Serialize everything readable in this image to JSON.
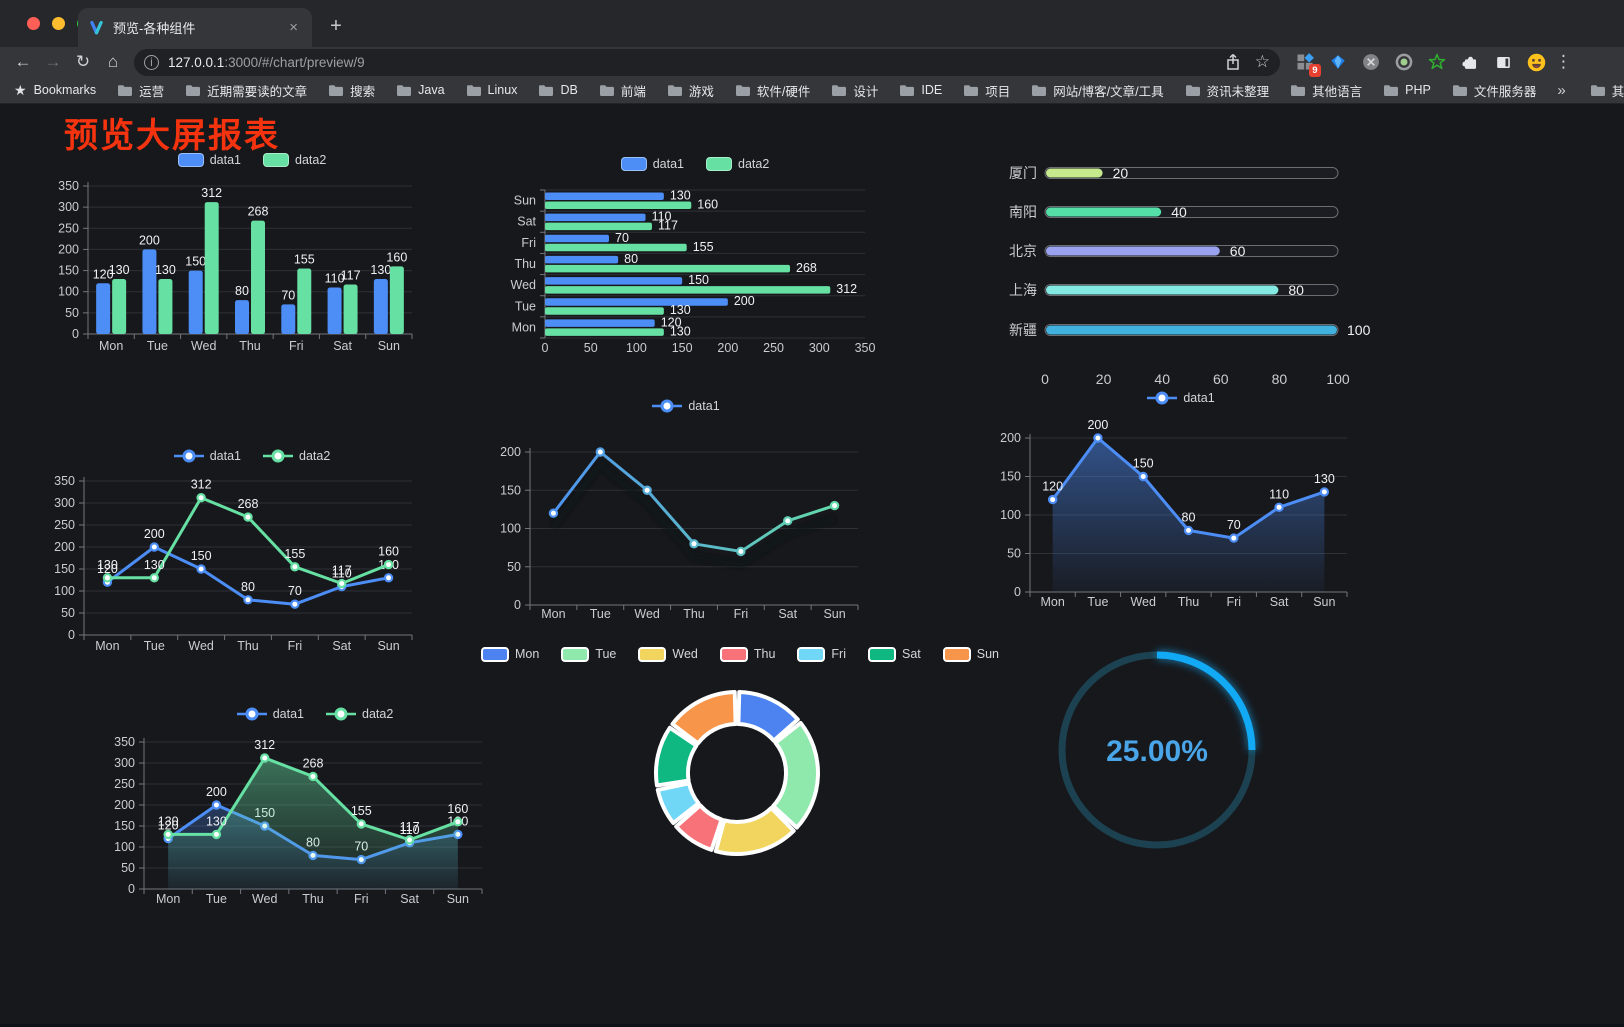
{
  "browser": {
    "tab_title": "预览-各种组件",
    "close_tab": "×",
    "new_tab_button": "+",
    "back_arrow": "←",
    "forward_arrow": "→",
    "reload_glyph": "↻",
    "home_glyph": "⌂",
    "url_host": "127.0.0.1",
    "url_path": ":3000/#/chart/preview/9",
    "star_glyph": "☆",
    "extension_badge": "9",
    "menu_dots": "⋮",
    "bookmarks_label": "Bookmarks",
    "bookmarks": [
      "运营",
      "近期需要读的文章",
      "搜索",
      "Java",
      "Linux",
      "DB",
      "前端",
      "游戏",
      "软件/硬件",
      "设计",
      "IDE",
      "项目",
      "网站/博客/文章/工具",
      "资讯未整理",
      "其他语言",
      "PHP",
      "文件服务器"
    ],
    "overflow_chevron": "»",
    "other_bookmarks": "其他书签"
  },
  "page": {
    "title": "预览大屏报表",
    "title_color": "#f5340f",
    "background": "#17181c"
  },
  "colors": {
    "data1": "#4C8DF6",
    "data2": "#66E0A3",
    "axis_text": "#c9ccd1",
    "axis_line": "#72767b",
    "grid_line": "#2e3136",
    "value_label": "#f0f1f3"
  },
  "chart_data": [
    {
      "id": "bar-vertical",
      "type": "bar",
      "categories": [
        "Mon",
        "Tue",
        "Wed",
        "Thu",
        "Fri",
        "Sat",
        "Sun"
      ],
      "series": [
        {
          "name": "data1",
          "color": "#4C8DF6",
          "values": [
            120,
            200,
            150,
            80,
            70,
            110,
            130
          ]
        },
        {
          "name": "data2",
          "color": "#66E0A3",
          "values": [
            130,
            130,
            312,
            268,
            155,
            117,
            160
          ]
        }
      ],
      "ylim": [
        0,
        350
      ],
      "ytick": 50,
      "value_labels": true,
      "legend": {
        "style": "rect",
        "entries": [
          {
            "label": "data1",
            "color": "#4C8DF6"
          },
          {
            "label": "data2",
            "color": "#66E0A3"
          }
        ]
      }
    },
    {
      "id": "bar-horizontal",
      "type": "hbar",
      "categories": [
        "Mon",
        "Tue",
        "Wed",
        "Thu",
        "Fri",
        "Sat",
        "Sun"
      ],
      "display_top_to_bottom": [
        "Sun",
        "Sat",
        "Fri",
        "Thu",
        "Wed",
        "Tue",
        "Mon"
      ],
      "series": [
        {
          "name": "data1",
          "color": "#4C8DF6",
          "values": [
            120,
            200,
            150,
            80,
            70,
            110,
            130
          ]
        },
        {
          "name": "data2",
          "color": "#66E0A3",
          "values": [
            130,
            130,
            312,
            268,
            155,
            117,
            160
          ]
        }
      ],
      "xlim": [
        0,
        350
      ],
      "xtick": 50,
      "value_labels": true,
      "legend": {
        "style": "rect",
        "entries": [
          {
            "label": "data1",
            "color": "#4C8DF6"
          },
          {
            "label": "data2",
            "color": "#66E0A3"
          }
        ]
      }
    },
    {
      "id": "progress",
      "type": "progress",
      "items": [
        {
          "label": "厦门",
          "value": 20,
          "color": "#c6e98e"
        },
        {
          "label": "南阳",
          "value": 40,
          "color": "#54dfa6"
        },
        {
          "label": "北京",
          "value": 60,
          "color": "#9aa2ef"
        },
        {
          "label": "上海",
          "value": 80,
          "color": "#84e9e3"
        },
        {
          "label": "新疆",
          "value": 100,
          "color": "#41b1de"
        }
      ],
      "xlim": [
        0,
        100
      ],
      "xticks": [
        0,
        20,
        40,
        60,
        80,
        100
      ]
    },
    {
      "id": "line-basic",
      "type": "line",
      "categories": [
        "Mon",
        "Tue",
        "Wed",
        "Thu",
        "Fri",
        "Sat",
        "Sun"
      ],
      "series": [
        {
          "name": "data1",
          "color": "#4C8DF6",
          "values": [
            120,
            200,
            150,
            80,
            70,
            110,
            130
          ],
          "labels": true
        },
        {
          "name": "data2",
          "color": "#66E0A3",
          "values": [
            130,
            130,
            312,
            268,
            155,
            117,
            160
          ],
          "labels": true
        }
      ],
      "ylim": [
        0,
        350
      ],
      "ytick": 50,
      "legend": {
        "style": "line",
        "entries": [
          {
            "label": "data1",
            "color": "#4C8DF6"
          },
          {
            "label": "data2",
            "color": "#66E0A3"
          }
        ]
      }
    },
    {
      "id": "line-gradient",
      "type": "line",
      "categories": [
        "Mon",
        "Tue",
        "Wed",
        "Thu",
        "Fri",
        "Sat",
        "Sun"
      ],
      "series": [
        {
          "name": "data1",
          "gradient": [
            "#4C8DF6",
            "#66E0A3"
          ],
          "color": "#4C8DF6",
          "values": [
            120,
            200,
            150,
            80,
            70,
            110,
            130
          ],
          "labels": false
        }
      ],
      "ylim": [
        0,
        200
      ],
      "ytick": 50,
      "shadow": true,
      "legend": {
        "style": "line",
        "entries": [
          {
            "label": "data1",
            "color": "#4C8DF6"
          }
        ]
      }
    },
    {
      "id": "line-area",
      "type": "line",
      "categories": [
        "Mon",
        "Tue",
        "Wed",
        "Thu",
        "Fri",
        "Sat",
        "Sun"
      ],
      "series": [
        {
          "name": "data1",
          "color": "#4C8DF6",
          "values": [
            120,
            200,
            150,
            80,
            70,
            110,
            130
          ],
          "labels": true,
          "area": true
        }
      ],
      "ylim": [
        0,
        200
      ],
      "ytick": 50,
      "legend": {
        "style": "line",
        "entries": [
          {
            "label": "data1",
            "color": "#4C8DF6"
          }
        ]
      }
    },
    {
      "id": "line-area-double",
      "type": "line",
      "categories": [
        "Mon",
        "Tue",
        "Wed",
        "Thu",
        "Fri",
        "Sat",
        "Sun"
      ],
      "series": [
        {
          "name": "data1",
          "color": "#4C8DF6",
          "values": [
            120,
            200,
            150,
            80,
            70,
            110,
            130
          ],
          "labels": true,
          "area": true
        },
        {
          "name": "data2",
          "color": "#66E0A3",
          "values": [
            130,
            130,
            312,
            268,
            155,
            117,
            160
          ],
          "labels": true,
          "area": true
        }
      ],
      "ylim": [
        0,
        350
      ],
      "ytick": 50,
      "legend": {
        "style": "line",
        "entries": [
          {
            "label": "data1",
            "color": "#4C8DF6"
          },
          {
            "label": "data2",
            "color": "#66E0A3"
          }
        ]
      }
    },
    {
      "id": "donut",
      "type": "donut",
      "items": [
        {
          "label": "Mon",
          "value": 120,
          "color": "#4C83F0"
        },
        {
          "label": "Tue",
          "value": 200,
          "color": "#8FE8AC"
        },
        {
          "label": "Wed",
          "value": 150,
          "color": "#F2D55F"
        },
        {
          "label": "Thu",
          "value": 80,
          "color": "#F8727A"
        },
        {
          "label": "Fri",
          "value": 70,
          "color": "#70D7F7"
        },
        {
          "label": "Sat",
          "value": 110,
          "color": "#0FB881"
        },
        {
          "label": "Sun",
          "value": 130,
          "color": "#F7954A"
        }
      ]
    },
    {
      "id": "gauge",
      "type": "gauge",
      "value": 25,
      "label": "25.00%",
      "arc_color": "#12A9F5",
      "track_color": "#1C4150",
      "text_color": "#49A5E8"
    }
  ]
}
